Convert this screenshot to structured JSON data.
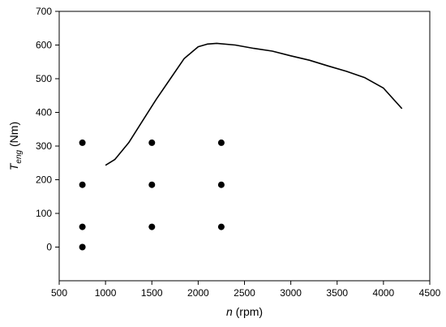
{
  "chart_data": {
    "type": "line",
    "xlabel": {
      "var": "n",
      "unit": " (rpm)"
    },
    "ylabel": {
      "var": "T",
      "sub": "eng",
      "unit": " (Nm)"
    },
    "xlim": [
      500,
      4500
    ],
    "ylim": [
      -100,
      700
    ],
    "xticks": [
      500,
      1000,
      1500,
      2000,
      2500,
      3000,
      3500,
      4000,
      4500
    ],
    "yticks": [
      0,
      100,
      200,
      300,
      400,
      500,
      600,
      700
    ],
    "grid": false,
    "series": [
      {
        "kind": "line",
        "color": "#000000",
        "points": [
          [
            1000,
            243
          ],
          [
            1100,
            260
          ],
          [
            1250,
            310
          ],
          [
            1400,
            375
          ],
          [
            1550,
            440
          ],
          [
            1700,
            500
          ],
          [
            1850,
            560
          ],
          [
            2000,
            595
          ],
          [
            2100,
            603
          ],
          [
            2200,
            605
          ],
          [
            2400,
            600
          ],
          [
            2600,
            590
          ],
          [
            2800,
            582
          ],
          [
            3000,
            568
          ],
          [
            3200,
            555
          ],
          [
            3400,
            538
          ],
          [
            3600,
            522
          ],
          [
            3800,
            503
          ],
          [
            4000,
            472
          ],
          [
            4200,
            411
          ]
        ]
      },
      {
        "kind": "scatter",
        "color": "#000000",
        "points": [
          [
            750,
            0
          ],
          [
            750,
            60
          ],
          [
            750,
            185
          ],
          [
            750,
            310
          ],
          [
            1500,
            60
          ],
          [
            1500,
            185
          ],
          [
            1500,
            310
          ],
          [
            2250,
            60
          ],
          [
            2250,
            185
          ],
          [
            2250,
            310
          ]
        ]
      }
    ]
  }
}
